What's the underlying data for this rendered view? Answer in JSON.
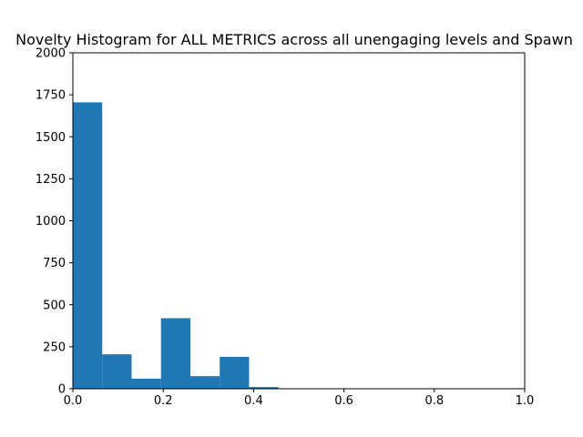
{
  "chart_data": {
    "type": "bar",
    "title": "Novelty Histogram for ALL METRICS across all unengaging levels and Spawn",
    "xlabel": "",
    "ylabel": "",
    "xlim": [
      0.0,
      1.0
    ],
    "ylim": [
      0,
      2000
    ],
    "grid": false,
    "bar_color": "#1f77b4",
    "x_ticks": [
      "0.0",
      "0.2",
      "0.4",
      "0.6",
      "0.8",
      "1.0"
    ],
    "y_ticks": [
      "0",
      "250",
      "500",
      "750",
      "1000",
      "1250",
      "1500",
      "1750",
      "2000"
    ],
    "bins": [
      {
        "start": 0.0,
        "end": 0.065,
        "count": 1705
      },
      {
        "start": 0.065,
        "end": 0.13,
        "count": 205
      },
      {
        "start": 0.13,
        "end": 0.195,
        "count": 60
      },
      {
        "start": 0.195,
        "end": 0.26,
        "count": 420
      },
      {
        "start": 0.26,
        "end": 0.325,
        "count": 75
      },
      {
        "start": 0.325,
        "end": 0.39,
        "count": 190
      },
      {
        "start": 0.39,
        "end": 0.455,
        "count": 10
      }
    ]
  }
}
